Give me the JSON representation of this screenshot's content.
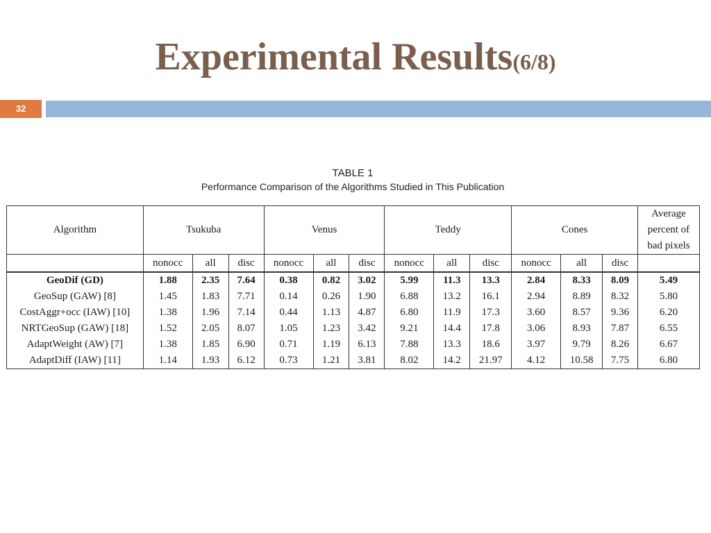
{
  "slide": {
    "title_main": "Experimental Results",
    "title_sub": "(6/8)",
    "number": "32",
    "accent_color": "#e07a40",
    "bar_color": "#95b6d6",
    "title_color": "#7a5e4e"
  },
  "table": {
    "caption_line1": "TABLE 1",
    "caption_line2": "Performance Comparison of the Algorithms Studied in This Publication",
    "group_headers": {
      "algorithm": "Algorithm",
      "tsukuba": "Tsukuba",
      "venus": "Venus",
      "teddy": "Teddy",
      "cones": "Cones",
      "average_line1": "Average",
      "average_line2": "percent of",
      "average_line3": "bad pixels"
    },
    "sub_headers": {
      "nonocc": "nonocc",
      "all": "all",
      "disc": "disc"
    },
    "rows": [
      {
        "algorithm": "GeoDif (GD)",
        "values": [
          "1.88",
          "2.35",
          "7.64",
          "0.38",
          "0.82",
          "3.02",
          "5.99",
          "11.3",
          "13.3",
          "2.84",
          "8.33",
          "8.09",
          "5.49"
        ]
      },
      {
        "algorithm": "GeoSup (GAW) [8]",
        "values": [
          "1.45",
          "1.83",
          "7.71",
          "0.14",
          "0.26",
          "1.90",
          "6.88",
          "13.2",
          "16.1",
          "2.94",
          "8.89",
          "8.32",
          "5.80"
        ]
      },
      {
        "algorithm": "CostAggr+occ (IAW) [10]",
        "values": [
          "1.38",
          "1.96",
          "7.14",
          "0.44",
          "1.13",
          "4.87",
          "6.80",
          "11.9",
          "17.3",
          "3.60",
          "8.57",
          "9.36",
          "6.20"
        ]
      },
      {
        "algorithm": "NRTGeoSup (GAW) [18]",
        "values": [
          "1.52",
          "2.05",
          "8.07",
          "1.05",
          "1.23",
          "3.42",
          "9.21",
          "14.4",
          "17.8",
          "3.06",
          "8.93",
          "7.87",
          "6.55"
        ]
      },
      {
        "algorithm": "AdaptWeight (AW) [7]",
        "values": [
          "1.38",
          "1.85",
          "6.90",
          "0.71",
          "1.19",
          "6.13",
          "7.88",
          "13.3",
          "18.6",
          "3.97",
          "9.79",
          "8.26",
          "6.67"
        ]
      },
      {
        "algorithm": "AdaptDiff (IAW) [11]",
        "values": [
          "1.14",
          "1.93",
          "6.12",
          "0.73",
          "1.21",
          "3.81",
          "8.02",
          "14.2",
          "21.97",
          "4.12",
          "10.58",
          "7.75",
          "6.80"
        ]
      }
    ]
  }
}
